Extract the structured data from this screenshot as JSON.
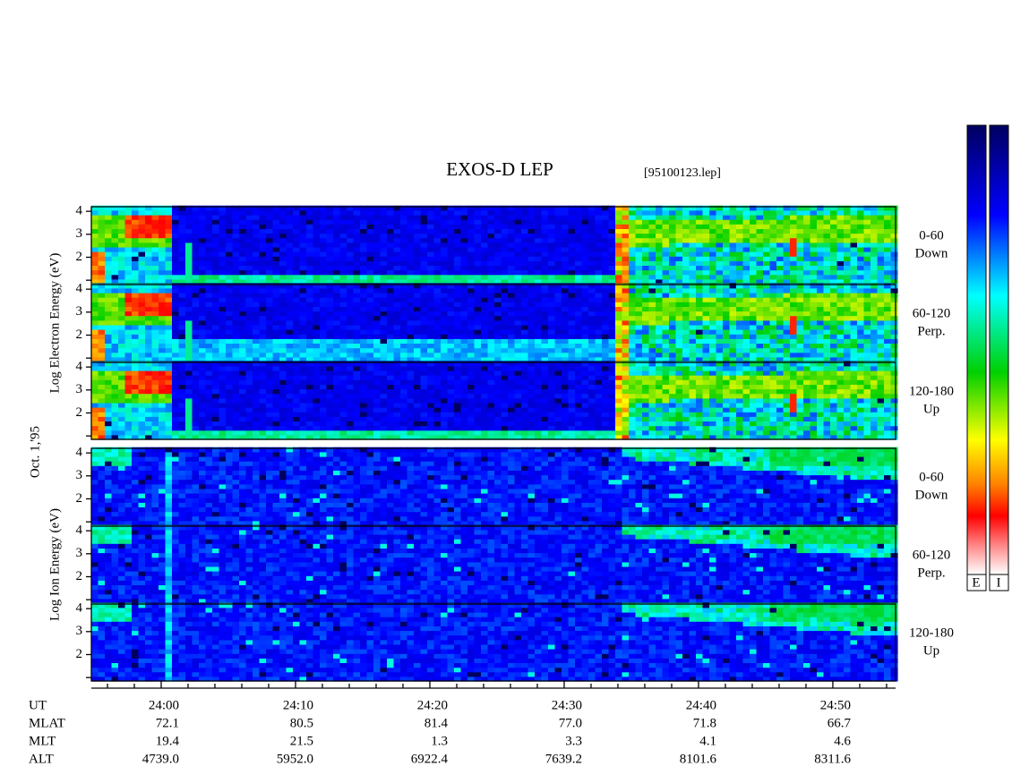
{
  "chart_data": {
    "type": "spectrogram",
    "title": "EXOS-D LEP",
    "subtitle": "[95100123.lep]",
    "date_label": "Oct. 1,'95",
    "xlim": [
      -5.2,
      54.67
    ],
    "xticks": [
      {
        "value": 0,
        "label": "24:00"
      },
      {
        "value": 10,
        "label": "24:10"
      },
      {
        "value": 20,
        "label": "24:20"
      },
      {
        "value": 30,
        "label": "24:30"
      },
      {
        "value": 40,
        "label": "24:40"
      },
      {
        "value": 50,
        "label": "24:50"
      }
    ],
    "xticks_minor": [
      -4,
      -2,
      2,
      4,
      6,
      8,
      12,
      14,
      16,
      18,
      22,
      24,
      26,
      28,
      32,
      34,
      36,
      38,
      42,
      44,
      46,
      48,
      52,
      54
    ],
    "ylim": [
      0.85,
      4.2
    ],
    "yticks": [
      2,
      3,
      4
    ],
    "yticks_minor": [
      1
    ],
    "groups": [
      {
        "ylabel": "Log Electron Energy (eV)",
        "panels": [
          {
            "angle": "0-60",
            "direction": "Down"
          },
          {
            "angle": "60-120",
            "direction": "Perp."
          },
          {
            "angle": "120-180",
            "direction": "Up"
          }
        ]
      },
      {
        "ylabel": "Log Ion Energy (eV)",
        "panels": [
          {
            "angle": "0-60",
            "direction": "Down"
          },
          {
            "angle": "60-120",
            "direction": "Perp."
          },
          {
            "angle": "120-180",
            "direction": "Up"
          }
        ]
      }
    ],
    "orbit_table": [
      {
        "name": "UT"
      },
      {
        "name": "MLAT",
        "values": [
          "72.1",
          "80.5",
          "81.4",
          "77.0",
          "71.8",
          "66.7"
        ]
      },
      {
        "name": "MLT",
        "values": [
          "19.4",
          "21.5",
          "1.3",
          "3.3",
          "4.1",
          "4.6"
        ]
      },
      {
        "name": "ALT",
        "values": [
          "4739.0",
          "5952.0",
          "6922.4",
          "7639.2",
          "8101.6",
          "8311.6"
        ]
      }
    ],
    "colorbar_labels": [
      "E",
      "I"
    ]
  }
}
